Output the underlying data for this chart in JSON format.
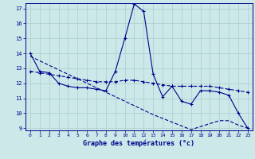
{
  "xlabel": "Graphe des températures (°c)",
  "background_color": "#cce8e8",
  "line_color": "#00008b",
  "grid_color": "#aacece",
  "hours": [
    0,
    1,
    2,
    3,
    4,
    5,
    6,
    7,
    8,
    9,
    10,
    11,
    12,
    13,
    14,
    15,
    16,
    17,
    18,
    19,
    20,
    21,
    22,
    23
  ],
  "temp_actual": [
    14.0,
    12.8,
    12.7,
    12.0,
    11.8,
    11.7,
    11.7,
    11.6,
    11.5,
    12.8,
    15.0,
    17.3,
    16.8,
    12.6,
    11.1,
    11.8,
    10.8,
    10.6,
    11.5,
    11.5,
    11.4,
    11.2,
    10.0,
    9.0
  ],
  "temp_trend": [
    12.8,
    12.7,
    12.6,
    12.5,
    12.4,
    12.3,
    12.2,
    12.1,
    12.1,
    12.1,
    12.2,
    12.2,
    12.1,
    12.0,
    11.9,
    11.8,
    11.8,
    11.8,
    11.8,
    11.8,
    11.7,
    11.6,
    11.5,
    11.4
  ],
  "temp_linear": [
    13.8,
    13.5,
    13.2,
    12.9,
    12.6,
    12.3,
    12.0,
    11.7,
    11.4,
    11.1,
    10.8,
    10.5,
    10.2,
    9.9,
    9.65,
    9.4,
    9.15,
    8.9,
    9.1,
    9.3,
    9.5,
    9.5,
    9.2,
    9.0
  ],
  "ylim": [
    9,
    17
  ],
  "yticks": [
    9,
    10,
    11,
    12,
    13,
    14,
    15,
    16,
    17
  ],
  "xlim_min": -0.5,
  "xlim_max": 23.5
}
